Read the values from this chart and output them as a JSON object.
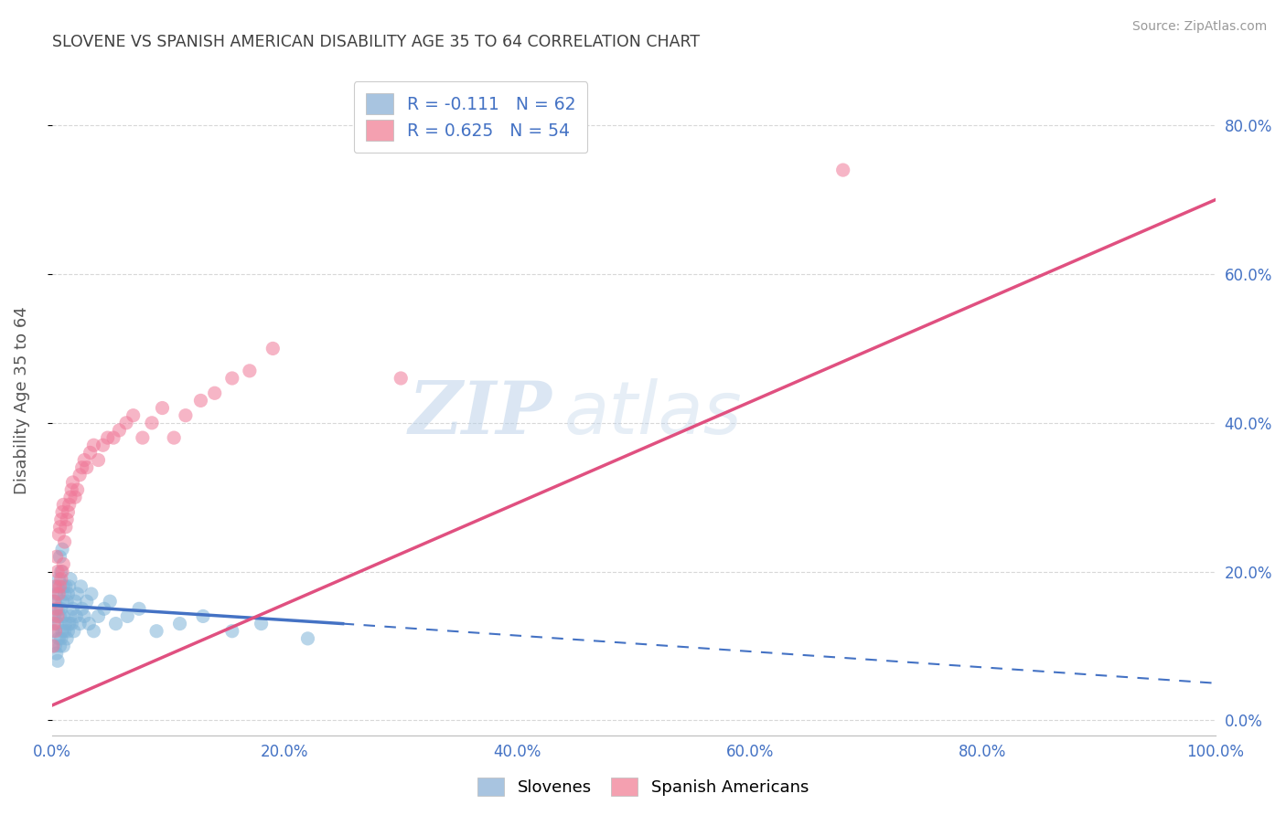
{
  "title": "SLOVENE VS SPANISH AMERICAN DISABILITY AGE 35 TO 64 CORRELATION CHART",
  "source": "Source: ZipAtlas.com",
  "ylabel": "Disability Age 35 to 64",
  "xlim": [
    0.0,
    1.0
  ],
  "ylim": [
    -0.02,
    0.88
  ],
  "yticks": [
    0.0,
    0.2,
    0.4,
    0.6,
    0.8
  ],
  "ytick_labels": [
    "0.0%",
    "20.0%",
    "40.0%",
    "60.0%",
    "80.0%"
  ],
  "xticks": [
    0.0,
    0.2,
    0.4,
    0.6,
    0.8,
    1.0
  ],
  "xtick_labels": [
    "0.0%",
    "20.0%",
    "40.0%",
    "60.0%",
    "80.0%",
    "100.0%"
  ],
  "slovene_color_patch": "#a8c4e0",
  "spanish_color_patch": "#f4a0b0",
  "slovene_scatter_color": "#7fb3d8",
  "spanish_scatter_color": "#f07898",
  "trendline_slovene_color": "#4472c4",
  "trendline_spanish_color": "#e05080",
  "R_slovene": -0.111,
  "N_slovene": 62,
  "R_spanish": 0.625,
  "N_spanish": 54,
  "slovene_x": [
    0.001,
    0.002,
    0.003,
    0.003,
    0.004,
    0.004,
    0.005,
    0.005,
    0.005,
    0.006,
    0.006,
    0.006,
    0.007,
    0.007,
    0.007,
    0.008,
    0.008,
    0.008,
    0.009,
    0.009,
    0.009,
    0.01,
    0.01,
    0.01,
    0.011,
    0.011,
    0.012,
    0.012,
    0.013,
    0.013,
    0.014,
    0.014,
    0.015,
    0.015,
    0.016,
    0.016,
    0.017,
    0.018,
    0.019,
    0.02,
    0.021,
    0.022,
    0.024,
    0.025,
    0.026,
    0.028,
    0.03,
    0.032,
    0.034,
    0.036,
    0.04,
    0.045,
    0.05,
    0.055,
    0.065,
    0.075,
    0.09,
    0.11,
    0.13,
    0.155,
    0.18,
    0.22
  ],
  "slovene_y": [
    0.12,
    0.14,
    0.1,
    0.16,
    0.09,
    0.17,
    0.08,
    0.13,
    0.18,
    0.11,
    0.15,
    0.19,
    0.1,
    0.14,
    0.22,
    0.11,
    0.15,
    0.2,
    0.12,
    0.16,
    0.23,
    0.1,
    0.14,
    0.18,
    0.12,
    0.17,
    0.13,
    0.18,
    0.11,
    0.16,
    0.12,
    0.17,
    0.13,
    0.18,
    0.14,
    0.19,
    0.13,
    0.15,
    0.12,
    0.16,
    0.14,
    0.17,
    0.13,
    0.18,
    0.15,
    0.14,
    0.16,
    0.13,
    0.17,
    0.12,
    0.14,
    0.15,
    0.16,
    0.13,
    0.14,
    0.15,
    0.12,
    0.13,
    0.14,
    0.12,
    0.13,
    0.11
  ],
  "spanish_x": [
    0.001,
    0.002,
    0.002,
    0.003,
    0.003,
    0.004,
    0.004,
    0.005,
    0.005,
    0.006,
    0.006,
    0.007,
    0.007,
    0.008,
    0.008,
    0.009,
    0.009,
    0.01,
    0.01,
    0.011,
    0.012,
    0.013,
    0.014,
    0.015,
    0.016,
    0.017,
    0.018,
    0.02,
    0.022,
    0.024,
    0.026,
    0.028,
    0.03,
    0.033,
    0.036,
    0.04,
    0.044,
    0.048,
    0.053,
    0.058,
    0.064,
    0.07,
    0.078,
    0.086,
    0.095,
    0.105,
    0.115,
    0.128,
    0.14,
    0.155,
    0.17,
    0.19,
    0.3,
    0.68
  ],
  "spanish_y": [
    0.1,
    0.13,
    0.16,
    0.12,
    0.18,
    0.15,
    0.22,
    0.14,
    0.2,
    0.17,
    0.25,
    0.18,
    0.26,
    0.19,
    0.27,
    0.2,
    0.28,
    0.21,
    0.29,
    0.24,
    0.26,
    0.27,
    0.28,
    0.29,
    0.3,
    0.31,
    0.32,
    0.3,
    0.31,
    0.33,
    0.34,
    0.35,
    0.34,
    0.36,
    0.37,
    0.35,
    0.37,
    0.38,
    0.38,
    0.39,
    0.4,
    0.41,
    0.38,
    0.4,
    0.42,
    0.38,
    0.41,
    0.43,
    0.44,
    0.46,
    0.47,
    0.5,
    0.46,
    0.74
  ],
  "spanish_outlier_x": [
    0.001
  ],
  "spanish_outlier_y": [
    0.46
  ],
  "spanish_high_x": [
    0.68
  ],
  "spanish_high_y": [
    0.74
  ],
  "trendline_slovene_x0": 0.0,
  "trendline_slovene_y0": 0.155,
  "trendline_slovene_x1": 0.25,
  "trendline_slovene_y1": 0.13,
  "trendline_slovene_xdash_end": 1.0,
  "trendline_slovene_ydash_end": 0.05,
  "trendline_spanish_x0": 0.0,
  "trendline_spanish_y0": 0.02,
  "trendline_spanish_x1": 1.0,
  "trendline_spanish_y1": 0.7,
  "watermark_zip": "ZIP",
  "watermark_atlas": "atlas",
  "background_color": "#ffffff",
  "grid_color": "#d8d8d8",
  "legend_text_color": "#4472c4",
  "title_color": "#404040",
  "axis_label_color": "#555555"
}
